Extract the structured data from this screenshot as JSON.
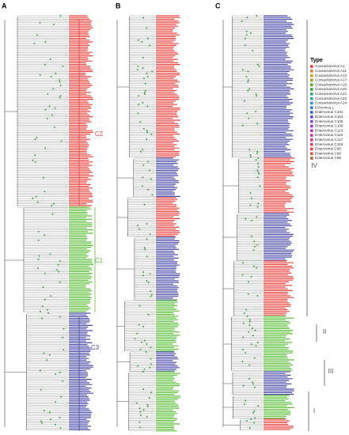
{
  "panels": [
    {
      "label": "A",
      "clades": [
        {
          "label": "C2",
          "color": "#e8413c"
        },
        {
          "label": "C1",
          "color": "#5cbf3a"
        },
        {
          "label": "C3",
          "color": "#4a4aa8"
        }
      ]
    },
    {
      "label": "B",
      "clades": []
    },
    {
      "label": "C",
      "clades": [
        {
          "label": "IV",
          "color": "#555555"
        },
        {
          "label": "II",
          "color": "#555555"
        },
        {
          "label": "III",
          "color": "#555555"
        },
        {
          "label": "I",
          "color": "#555555"
        }
      ]
    }
  ],
  "legend": {
    "title": "Type",
    "items": [
      {
        "label": "Coxsackievirus A1",
        "color": "#e8413c"
      },
      {
        "label": "Coxsackievirus A11",
        "color": "#d9822b"
      },
      {
        "label": "Coxsackievirus A13",
        "color": "#c9a227"
      },
      {
        "label": "Coxsackievirus A17",
        "color": "#9aa52a"
      },
      {
        "label": "Coxsackievirus A19",
        "color": "#6aa83a"
      },
      {
        "label": "Coxsackievirus A20",
        "color": "#3aa84a"
      },
      {
        "label": "Coxsackievirus A21",
        "color": "#2aa87a"
      },
      {
        "label": "Coxsackievirus A22",
        "color": "#2aa8a0"
      },
      {
        "label": "Coxsackievirus A24",
        "color": "#2a9ac0"
      },
      {
        "label": "Echovirus 1",
        "color": "#2a80d0"
      },
      {
        "label": "Enterovirus C102",
        "color": "#3a60d0"
      },
      {
        "label": "Enterovirus C104",
        "color": "#5a50d0"
      },
      {
        "label": "Enterovirus C105",
        "color": "#7a48c8"
      },
      {
        "label": "Enterovirus C109",
        "color": "#9a40c0"
      },
      {
        "label": "Enterovirus C113",
        "color": "#b83ab0"
      },
      {
        "label": "Enterovirus C116",
        "color": "#c83a98"
      },
      {
        "label": "Enterovirus C117",
        "color": "#d83a80"
      },
      {
        "label": "Enterovirus C118",
        "color": "#e03a68"
      },
      {
        "label": "Enterovirus C95",
        "color": "#e04a50"
      },
      {
        "label": "Enterovirus C96",
        "color": "#d05a40"
      },
      {
        "label": "Enterovirus C99",
        "color": "#b06a40"
      }
    ]
  }
}
